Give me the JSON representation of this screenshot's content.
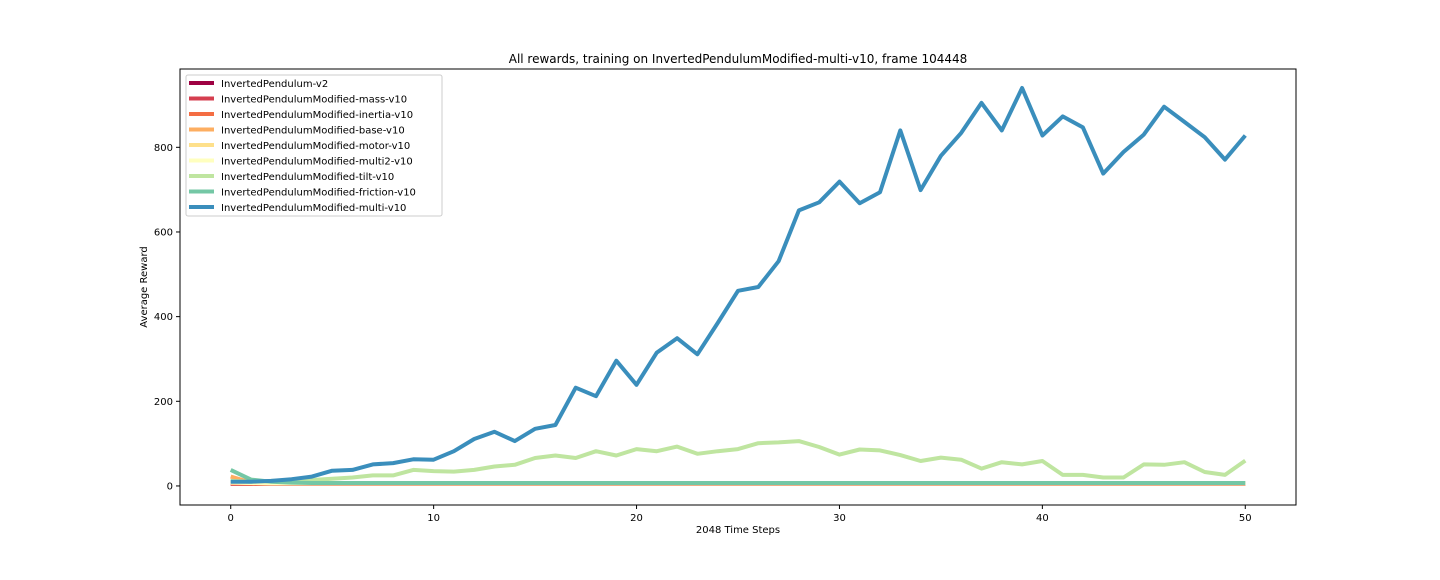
{
  "chart_data": {
    "type": "line",
    "title": "All rewards, training on InvertedPendulumModified-multi-v10, frame 104448",
    "xlabel": "2048 Time Steps",
    "ylabel": "Average Reward",
    "xlim": [
      -2.5,
      52.5
    ],
    "ylim": [
      -45,
      985
    ],
    "xticks": [
      0,
      10,
      20,
      30,
      40,
      50
    ],
    "yticks": [
      0,
      200,
      400,
      600,
      800
    ],
    "grid": false,
    "legend_position": "top-left",
    "x": [
      0,
      1,
      2,
      3,
      4,
      5,
      6,
      7,
      8,
      9,
      10,
      11,
      12,
      13,
      14,
      15,
      16,
      17,
      18,
      19,
      20,
      21,
      22,
      23,
      24,
      25,
      26,
      27,
      28,
      29,
      30,
      31,
      32,
      33,
      34,
      35,
      36,
      37,
      38,
      39,
      40,
      41,
      42,
      43,
      44,
      45,
      46,
      47,
      48,
      49,
      50
    ],
    "series": [
      {
        "name": "InvertedPendulum-v2",
        "color": "#9e0142",
        "values": [
          5,
          5,
          5,
          5,
          5,
          5,
          5,
          5,
          5,
          5,
          5,
          5,
          5,
          5,
          5,
          5,
          5,
          5,
          5,
          5,
          5,
          5,
          5,
          5,
          5,
          5,
          5,
          5,
          5,
          5,
          5,
          5,
          5,
          5,
          5,
          5,
          5,
          5,
          5,
          5,
          5,
          5,
          5,
          5,
          5,
          5,
          5,
          5,
          5,
          5,
          5
        ]
      },
      {
        "name": "InvertedPendulumModified-mass-v10",
        "color": "#d53e4f",
        "values": [
          5,
          5,
          5,
          5,
          5,
          5,
          5,
          5,
          5,
          5,
          5,
          5,
          5,
          5,
          5,
          5,
          5,
          5,
          5,
          5,
          5,
          5,
          5,
          5,
          5,
          5,
          5,
          5,
          5,
          5,
          5,
          5,
          5,
          5,
          5,
          5,
          5,
          5,
          5,
          5,
          5,
          5,
          5,
          5,
          5,
          5,
          5,
          5,
          5,
          5,
          5
        ]
      },
      {
        "name": "InvertedPendulumModified-inertia-v10",
        "color": "#f46d43",
        "values": [
          6,
          5,
          5,
          5,
          5,
          5,
          5,
          5,
          5,
          5,
          5,
          5,
          5,
          5,
          5,
          5,
          5,
          5,
          5,
          5,
          5,
          5,
          5,
          5,
          5,
          5,
          5,
          5,
          5,
          5,
          5,
          5,
          5,
          5,
          5,
          5,
          5,
          5,
          5,
          5,
          5,
          5,
          5,
          5,
          5,
          5,
          5,
          5,
          5,
          5,
          5
        ]
      },
      {
        "name": "InvertedPendulumModified-base-v10",
        "color": "#fdae61",
        "values": [
          22,
          8,
          6,
          6,
          6,
          6,
          6,
          6,
          6,
          6,
          6,
          6,
          6,
          6,
          6,
          6,
          6,
          6,
          6,
          6,
          6,
          6,
          6,
          6,
          6,
          6,
          6,
          6,
          6,
          6,
          6,
          6,
          6,
          6,
          6,
          6,
          6,
          6,
          6,
          6,
          6,
          6,
          6,
          6,
          6,
          6,
          6,
          6,
          6,
          6,
          6
        ]
      },
      {
        "name": "InvertedPendulumModified-motor-v10",
        "color": "#fee08b",
        "values": [
          9,
          7,
          6,
          6,
          6,
          6,
          6,
          6,
          6,
          6,
          6,
          6,
          6,
          6,
          6,
          6,
          6,
          6,
          6,
          6,
          6,
          6,
          6,
          6,
          6,
          6,
          6,
          6,
          6,
          6,
          6,
          6,
          6,
          6,
          6,
          6,
          6,
          6,
          6,
          6,
          6,
          6,
          6,
          6,
          6,
          6,
          6,
          6,
          6,
          6,
          6
        ]
      },
      {
        "name": "InvertedPendulumModified-multi2-v10",
        "color": "#ffffbf",
        "values": [
          8,
          7,
          6,
          6,
          6,
          6,
          6,
          6,
          6,
          6,
          6,
          6,
          6,
          6,
          6,
          6,
          6,
          6,
          6,
          6,
          6,
          6,
          6,
          6,
          6,
          6,
          6,
          6,
          6,
          6,
          6,
          6,
          6,
          6,
          6,
          6,
          6,
          6,
          6,
          6,
          6,
          6,
          6,
          6,
          6,
          6,
          6,
          6,
          6,
          6,
          6
        ]
      },
      {
        "name": "InvertedPendulumModified-tilt-v10",
        "color": "#bfe5a0",
        "values": [
          12,
          10,
          12,
          12,
          14,
          17,
          20,
          25,
          25,
          38,
          35,
          34,
          38,
          46,
          50,
          66,
          72,
          66,
          82,
          72,
          87,
          82,
          93,
          76,
          82,
          87,
          101,
          103,
          106,
          92,
          74,
          86,
          84,
          73,
          59,
          67,
          62,
          41,
          56,
          51,
          59,
          26,
          26,
          20,
          20,
          51,
          50,
          56,
          33,
          26,
          60
        ]
      },
      {
        "name": "InvertedPendulumModified-friction-v10",
        "color": "#74c7a5",
        "values": [
          38,
          15,
          10,
          8,
          7,
          7,
          7,
          7,
          7,
          7,
          7,
          7,
          7,
          7,
          7,
          7,
          7,
          7,
          7,
          7,
          7,
          7,
          7,
          7,
          7,
          7,
          7,
          7,
          7,
          7,
          7,
          7,
          7,
          7,
          7,
          7,
          7,
          7,
          7,
          7,
          7,
          7,
          7,
          7,
          7,
          7,
          7,
          7,
          7,
          7,
          7
        ]
      },
      {
        "name": "InvertedPendulumModified-multi-v10",
        "color": "#3a8ebc",
        "values": [
          10,
          10,
          12,
          16,
          22,
          36,
          38,
          51,
          54,
          63,
          62,
          82,
          111,
          128,
          106,
          135,
          144,
          232,
          212,
          296,
          239,
          315,
          349,
          311,
          385,
          461,
          470,
          531,
          651,
          670,
          719,
          668,
          694,
          840,
          699,
          780,
          834,
          905,
          840,
          940,
          828,
          873,
          847,
          738,
          789,
          830,
          896,
          860,
          824,
          771,
          828
        ]
      }
    ]
  }
}
